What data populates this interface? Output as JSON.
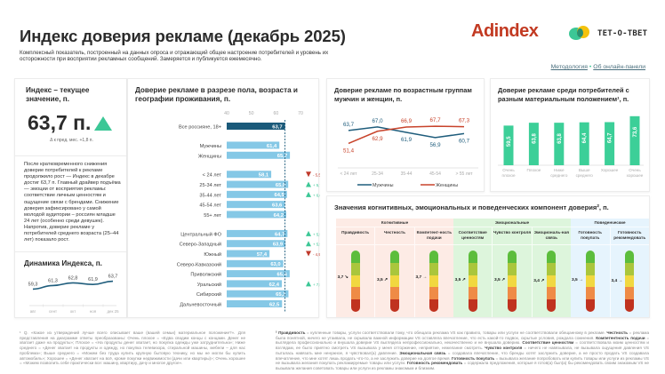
{
  "header": {
    "title": "Индекс доверия рекламе (декабрь 2025)",
    "subtitle": "Комплексный показатель, построенный на данных опроса и отражающий общее настроение потребителей и уровень их осторожности при восприятии рекламных сообщений. Замеряется и публикуется ежемесячно.",
    "logo_adindex": "Adindex",
    "logo_teto": "ТЕТ-О-ТВЕТ",
    "link_methodology": "Методология",
    "link_panel": "Об онлайн-панели",
    "link_separator": "•"
  },
  "index_card": {
    "title": "Индекс – текущее значение, п.",
    "value": "63,7 п.",
    "trend_icon": "triangle-up",
    "delta_text": "Δ к пред. мес.  +1,8 п.",
    "commentary": "После кратковременного снижения доверие потребителей к рекламе продолжило рост — Индекс в декабре достиг 63,7 п. Главный драйвер подъёма — эмоции от восприятия рекламы: соответствие личным ценностям и ощущение связи с брендами. Снижение доверия зафиксировано у самой молодой аудитории – россиян младше 24 лет (особенно среди девушек). Напротив, доверие рекламе у потребителей среднего возраста (25–44 лет) показало рост.",
    "dynamics_title": "Динамика Индекса, п."
  },
  "colors": {
    "accent_green": "#3cc796",
    "accent_red": "#c0392b",
    "bar_light": "#85c8e6",
    "bar_dark": "#1b5a7a",
    "line_men": "#1f5d7c",
    "line_women": "#c8432b",
    "material_bar": "#3ccf98",
    "group_cognitive": "#fdebe5",
    "group_emotional": "#ddf5dc",
    "group_behavioral": "#e6f4fd"
  },
  "chart_data": [
    {
      "id": "dynamics",
      "type": "line",
      "title": "Динамика Индекса, п.",
      "categories": [
        "авг",
        "сент",
        "окт",
        "ноя",
        "дек 25"
      ],
      "values": [
        59.3,
        61.3,
        62.8,
        61.9,
        63.7
      ],
      "labels": [
        "59,3",
        "61,3",
        "62,8",
        "61,9",
        "63,7"
      ],
      "ylim": [
        55,
        66
      ]
    },
    {
      "id": "slices",
      "type": "bar",
      "orientation": "horizontal",
      "title": "Доверие рекламе в разрезе пола, возраста и географии проживания, п.",
      "xticks": [
        "40",
        "50",
        "60",
        "70"
      ],
      "xlim": [
        40,
        70
      ],
      "reference_line": 63.7,
      "groups": [
        {
          "rows": [
            {
              "label": "Все россияне, 18+",
              "value": 63.7,
              "text": "63,7",
              "highlight": true
            }
          ]
        },
        {
          "rows": [
            {
              "label": "Мужчины",
              "value": 61.4,
              "text": "61,4"
            },
            {
              "label": "Женщины",
              "value": 65.7,
              "text": "65,7"
            }
          ]
        },
        {
          "rows": [
            {
              "label": "< 24 лет",
              "value": 58.1,
              "text": "58,1",
              "change": "- 5,5 п.",
              "dir": "down"
            },
            {
              "label": "25-34 лет",
              "value": 65.0,
              "text": "65,0",
              "change": "+ 5,7 п.",
              "dir": "up"
            },
            {
              "label": "35-44 лет",
              "value": 64.5,
              "text": "64,5",
              "change": "+ 6,0 п.",
              "dir": "up"
            },
            {
              "label": "45-54 лет",
              "value": 63.6,
              "text": "63,6"
            },
            {
              "label": "55+ лет",
              "value": 64.2,
              "text": "64,2"
            }
          ]
        },
        {
          "rows": [
            {
              "label": "Центральный ФО",
              "value": 64.7,
              "text": "64,7",
              "change": "+ 5,5 п.",
              "dir": "up"
            },
            {
              "label": "Северо-Западный",
              "value": 63.9,
              "text": "63,9",
              "change": "+ 5,5 п.",
              "dir": "up"
            },
            {
              "label": "Южный",
              "value": 57.4,
              "text": "57,4",
              "change": "- 4,9 п.",
              "dir": "down"
            },
            {
              "label": "Северо-Кавказский",
              "value": 63.0,
              "text": "63,0"
            },
            {
              "label": "Приволжский",
              "value": 65.6,
              "text": "65,6"
            },
            {
              "label": "Уральский",
              "value": 62.4,
              "text": "62,4",
              "change": "+ 7,5 п.",
              "dir": "up"
            },
            {
              "label": "Сибирский",
              "value": 65.1,
              "text": "65,1"
            },
            {
              "label": "Дальневосточный",
              "value": 62.5,
              "text": "62,5"
            }
          ]
        }
      ]
    },
    {
      "id": "age_gender",
      "type": "line",
      "title": "Доверие рекламе по возрастным группам мужчин и женщин, п.",
      "categories": [
        "< 24 лет",
        "25-34",
        "35-44",
        "45-54",
        "> 55 лет"
      ],
      "series": [
        {
          "name": "Мужчины",
          "values": [
            63.7,
            67.0,
            61.9,
            56.9,
            60.7
          ],
          "labels": [
            "63,7",
            "67,0",
            "61,9",
            "56,9",
            "60,7"
          ]
        },
        {
          "name": "Женщины",
          "values": [
            51.4,
            62.9,
            66.9,
            67.7,
            67.3
          ],
          "labels": [
            "51,4",
            "62,9",
            "66,9",
            "67,7",
            "67,3"
          ]
        }
      ],
      "ylim": [
        45,
        72
      ],
      "legend": "bottom"
    },
    {
      "id": "material",
      "type": "bar",
      "title": "Доверие рекламе среди потребителей с разным материальным положением¹, п.",
      "categories": [
        "Очень плохое",
        "Плохое",
        "Ниже среднего",
        "Выше среднего",
        "Хорошее",
        "Очень хорошее"
      ],
      "values": [
        59.5,
        63.8,
        63.8,
        64.4,
        64.7,
        73.6
      ],
      "labels": [
        "59,5",
        "63,8",
        "63,8",
        "64,4",
        "64,7",
        "73,6"
      ],
      "ylim": [
        0,
        80
      ]
    }
  ],
  "components": {
    "title": "Значения когнитивных, эмоциональных и поведенческих компонент доверия², п.",
    "scale_max": 5,
    "groups": [
      {
        "name": "Когнитивные",
        "items": [
          {
            "label": "Правдивость",
            "value": 3.7,
            "text": "3,7",
            "trend": "↘"
          },
          {
            "label": "Честность",
            "value": 3.5,
            "text": "3,5",
            "trend": "↗"
          },
          {
            "label": "Компетент-ность подачи",
            "value": 3.7,
            "text": "3,7",
            "trend": "→"
          }
        ]
      },
      {
        "name": "Эмоциональные",
        "items": [
          {
            "label": "Соответствие ценностям",
            "value": 3.5,
            "text": "3,5",
            "trend": "↗"
          },
          {
            "label": "Чувство контроля",
            "value": 3.5,
            "text": "3,5",
            "trend": "↗"
          },
          {
            "label": "Эмоциональ-ная связь",
            "value": 3.4,
            "text": "3,4",
            "trend": "↗"
          }
        ]
      },
      {
        "name": "Поведенческие",
        "items": [
          {
            "label": "Готовность покупать",
            "value": 3.5,
            "text": "3,5",
            "trend": "→"
          },
          {
            "label": "Готовность рекомендовать",
            "value": 3.4,
            "text": "3,4",
            "trend": "→"
          }
        ]
      }
    ],
    "gauge_colors": [
      "#5cbd3c",
      "#aac63c",
      "#f1d840",
      "#ef8b46",
      "#c0321f"
    ]
  },
  "footnotes": {
    "fn1": "¹ Q. «Какое из утверждений лучше всего описывает ваше (вашей семьи) материальное положение?». Для представления на диаграмме ответы преобразованы: Очень плохое = «Едва сводим концы с концами. Денег не хватает даже на продукты»; Плохое = «На продукты денег хватает, но покупка одежды уже затруднительна»; Ниже среднего = «Денег хватает на продукты и одежду, но покупка телевизора, стиральной машины, мебели – для нас проблема»; Выше среднего = «Можем без труда купить крупную бытовую технику, но мы не могли бы купить автомобиль»; Хорошее = «Денег хватает на всё, кроме покупки недвижимости (дачи или квартиры)»; Очень хорошее = «Можем позволить себе практически все: машину, квартиру, дачу и многое другое».",
    "fn2_parts": [
      {
        "b": "² Правдивость",
        "t": " = купленные товары, услуги соответствовали тому, что обещала реклама VS как правило, товары или услуги не соответствовали обещанному в рекламе. "
      },
      {
        "b": "Честность",
        "t": " = реклама была понятной, ничего не утаивала, не скрывала важной информации VS оставляла впечатление, что есть какой-то подвох, скрытые условия, рождала сомнения. "
      },
      {
        "b": "Компетентность подачи",
        "t": " = выглядела профессионально и внушала доверие VS выглядела непрофессионально, некачественно и не внушала доверию. "
      },
      {
        "b": "Соответствие ценностям",
        "t": " = соответствовала моим ценностям и взглядам, ее было приятно смотреть VS вызывала у меня отторжение, неприятие, нежелание смотреть. "
      },
      {
        "b": "Чувство контроля",
        "t": " = ничего не навязывала, не вызывала ощущения давления VS пыталась навязать мне ненужное, я чувствовал(а) давление. "
      },
      {
        "b": "Эмоциональная связь",
        "t": " = создавала впечатление, что бренды хотят заслужить доверие, а не просто продать VS создавала впечатление, что мне хотят лишь продать что-то, а не заслужить доверие на долгое время. "
      },
      {
        "b": "Готовность покупать",
        "t": " = вызывала желание попробовать или купить товары или услуги из рекламы VS не вызывала желания покупать рекламируемые товары или услуги. "
      },
      {
        "b": "Готовность рекомендовать",
        "t": " = содержала предложения, которые я готов(а) был(а) бы рекомендовать своим знакомым VS не вызывала желания советовать товары или услуги из рекламы знакомым и близким."
      }
    ]
  }
}
